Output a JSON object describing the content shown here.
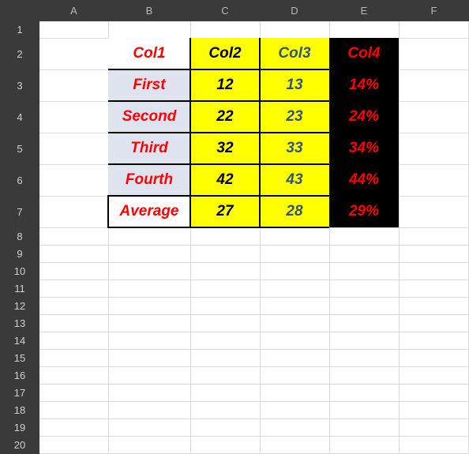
{
  "columns": [
    "A",
    "B",
    "C",
    "D",
    "E",
    "F"
  ],
  "rows": [
    "1",
    "2",
    "3",
    "4",
    "5",
    "6",
    "7",
    "8",
    "9",
    "10",
    "11",
    "12",
    "13",
    "14",
    "15",
    "16",
    "17",
    "18",
    "19",
    "20"
  ],
  "table": {
    "header": [
      "Col1",
      "Col2",
      "Col3",
      "Col4"
    ],
    "body": [
      [
        "First",
        "12",
        "13",
        "14%"
      ],
      [
        "Second",
        "22",
        "23",
        "24%"
      ],
      [
        "Third",
        "32",
        "33",
        "34%"
      ],
      [
        "Fourth",
        "42",
        "43",
        "44%"
      ],
      [
        "Average",
        "27",
        "28",
        "29%"
      ]
    ]
  },
  "colors": {
    "header_bg": "#3a3a3a",
    "label_bg": "#dfe3f0",
    "yellow": "#ffff00",
    "black": "#000000",
    "red_text": "#ff0000",
    "blue_text": "#33557a"
  }
}
